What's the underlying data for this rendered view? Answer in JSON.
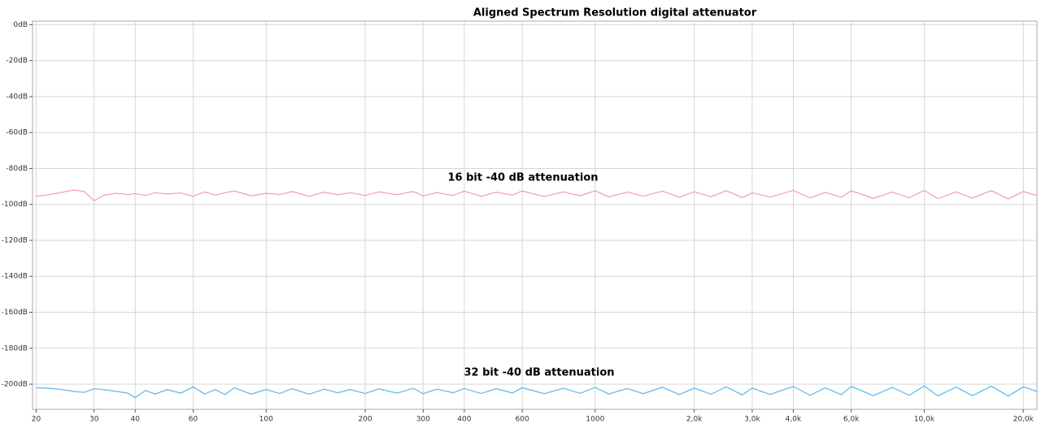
{
  "chart_data": {
    "type": "line",
    "title": "Aligned Spectrum  Resolution digital attenuator",
    "xscale": "log",
    "grid": true,
    "xlim": [
      19.5,
      22000
    ],
    "xticks": [
      20,
      30,
      40,
      60,
      100,
      200,
      300,
      400,
      600,
      1000,
      {
        "value": 2000,
        "label": "2,0k"
      },
      {
        "value": 3000,
        "label": "3,0k"
      },
      {
        "value": 4000,
        "label": "4,0k"
      },
      {
        "value": 6000,
        "label": "6,0k"
      },
      {
        "value": 10000,
        "label": "10,0k"
      },
      {
        "value": 20000,
        "label": "20,0k"
      }
    ],
    "ylim": [
      -214,
      2
    ],
    "yticks": [
      {
        "value": 0,
        "label": "0dB"
      },
      {
        "value": -20,
        "label": "-20dB"
      },
      {
        "value": -40,
        "label": "-40dB"
      },
      {
        "value": -60,
        "label": "-60dB"
      },
      {
        "value": -80,
        "label": "-80dB"
      },
      {
        "value": -100,
        "label": "-100dB"
      },
      {
        "value": -120,
        "label": "-120dB"
      },
      {
        "value": -140,
        "label": "-140dB"
      },
      {
        "value": -160,
        "label": "-160dB"
      },
      {
        "value": -180,
        "label": "-180dB"
      },
      {
        "value": -200,
        "label": "-200dB"
      }
    ],
    "x": [
      20,
      22,
      24,
      26,
      28,
      30,
      32,
      35,
      38,
      40,
      43,
      46,
      50,
      55,
      60,
      65,
      70,
      75,
      80,
      90,
      100,
      110,
      120,
      135,
      150,
      165,
      180,
      200,
      220,
      250,
      280,
      300,
      330,
      370,
      400,
      450,
      500,
      560,
      600,
      700,
      800,
      900,
      1000,
      1100,
      1250,
      1400,
      1600,
      1800,
      2000,
      2250,
      2500,
      2800,
      3000,
      3400,
      4000,
      4500,
      5000,
      5600,
      6000,
      7000,
      8000,
      9000,
      10000,
      11000,
      12500,
      14000,
      16000,
      18000,
      20000,
      22000
    ],
    "series": [
      {
        "name": "16 bit -40 dB attenuation",
        "color": "#f59cab",
        "values": [
          -95.5,
          -94.5,
          -93.2,
          -92,
          -92.8,
          -98,
          -95,
          -93.8,
          -94.5,
          -94,
          -95,
          -93.5,
          -94.2,
          -93.6,
          -95.5,
          -93,
          -94.8,
          -93.5,
          -92.5,
          -95.2,
          -93.8,
          -94.5,
          -92.8,
          -95.5,
          -93.2,
          -94.6,
          -93.5,
          -95,
          -93,
          -94.6,
          -92.8,
          -95.3,
          -93.4,
          -95,
          -92.6,
          -95.5,
          -93.2,
          -94.8,
          -92.5,
          -95.6,
          -93,
          -95.2,
          -92.4,
          -95.8,
          -93.1,
          -95.4,
          -92.6,
          -96,
          -93,
          -95.7,
          -92.3,
          -96.2,
          -93.5,
          -95.9,
          -92.2,
          -96.4,
          -93.3,
          -96,
          -92.4,
          -96.6,
          -93.1,
          -96.3,
          -92.2,
          -96.8,
          -93,
          -96.5,
          -92.3,
          -97,
          -92.8,
          -95
        ]
      },
      {
        "name": "32 bit -40 dB attenuation",
        "color": "#55b6f2",
        "values": [
          -202,
          -202.3,
          -203,
          -204,
          -204.6,
          -202.5,
          -203,
          -204,
          -205,
          -207.5,
          -203.5,
          -205.5,
          -203,
          -205,
          -201.5,
          -205.5,
          -203,
          -205.8,
          -202,
          -205.5,
          -203,
          -205.2,
          -202.5,
          -205.6,
          -202.8,
          -204.8,
          -203,
          -205.2,
          -202.6,
          -205,
          -202.3,
          -205.3,
          -202.8,
          -204.8,
          -202.4,
          -205.2,
          -202.5,
          -204.9,
          -202,
          -205.3,
          -202.3,
          -205.1,
          -201.8,
          -205.5,
          -202.4,
          -205.3,
          -201.7,
          -205.8,
          -202.2,
          -205.6,
          -201.5,
          -206,
          -202.2,
          -205.7,
          -201.3,
          -206.2,
          -202,
          -205.9,
          -201.2,
          -206.4,
          -201.8,
          -206.2,
          -201,
          -206.5,
          -201.6,
          -206.4,
          -201.1,
          -206.6,
          -201.5,
          -204
        ]
      }
    ]
  }
}
